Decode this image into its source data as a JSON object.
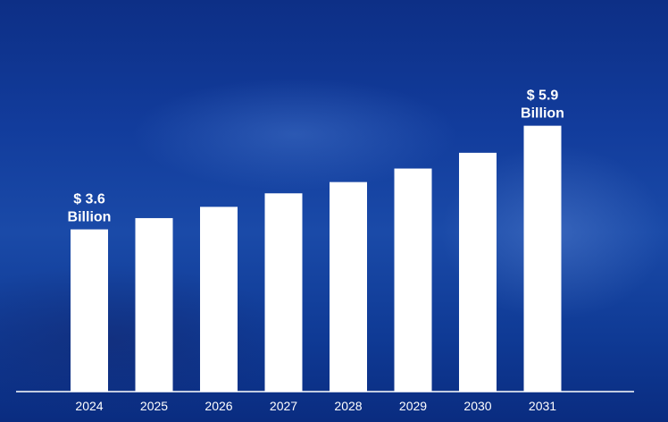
{
  "chart_data": {
    "type": "bar",
    "title": "",
    "xlabel": "",
    "ylabel": "",
    "categories": [
      "2024",
      "2025",
      "2026",
      "2027",
      "2028",
      "2029",
      "2030",
      "2031"
    ],
    "values": [
      3.6,
      3.85,
      4.1,
      4.4,
      4.65,
      4.95,
      5.3,
      5.9
    ],
    "unit_prefix": "$",
    "unit_suffix": "Billion",
    "data_labels": [
      {
        "category": "2024",
        "line1": "$ 3.6",
        "line2": "Billion"
      },
      {
        "category": "2031",
        "line1": "$ 5.9",
        "line2": "Billion"
      }
    ],
    "ylim": [
      0,
      6.5
    ],
    "grid": false,
    "legend": "none",
    "bar_color": "#ffffff",
    "background_color": "#123c9c"
  }
}
